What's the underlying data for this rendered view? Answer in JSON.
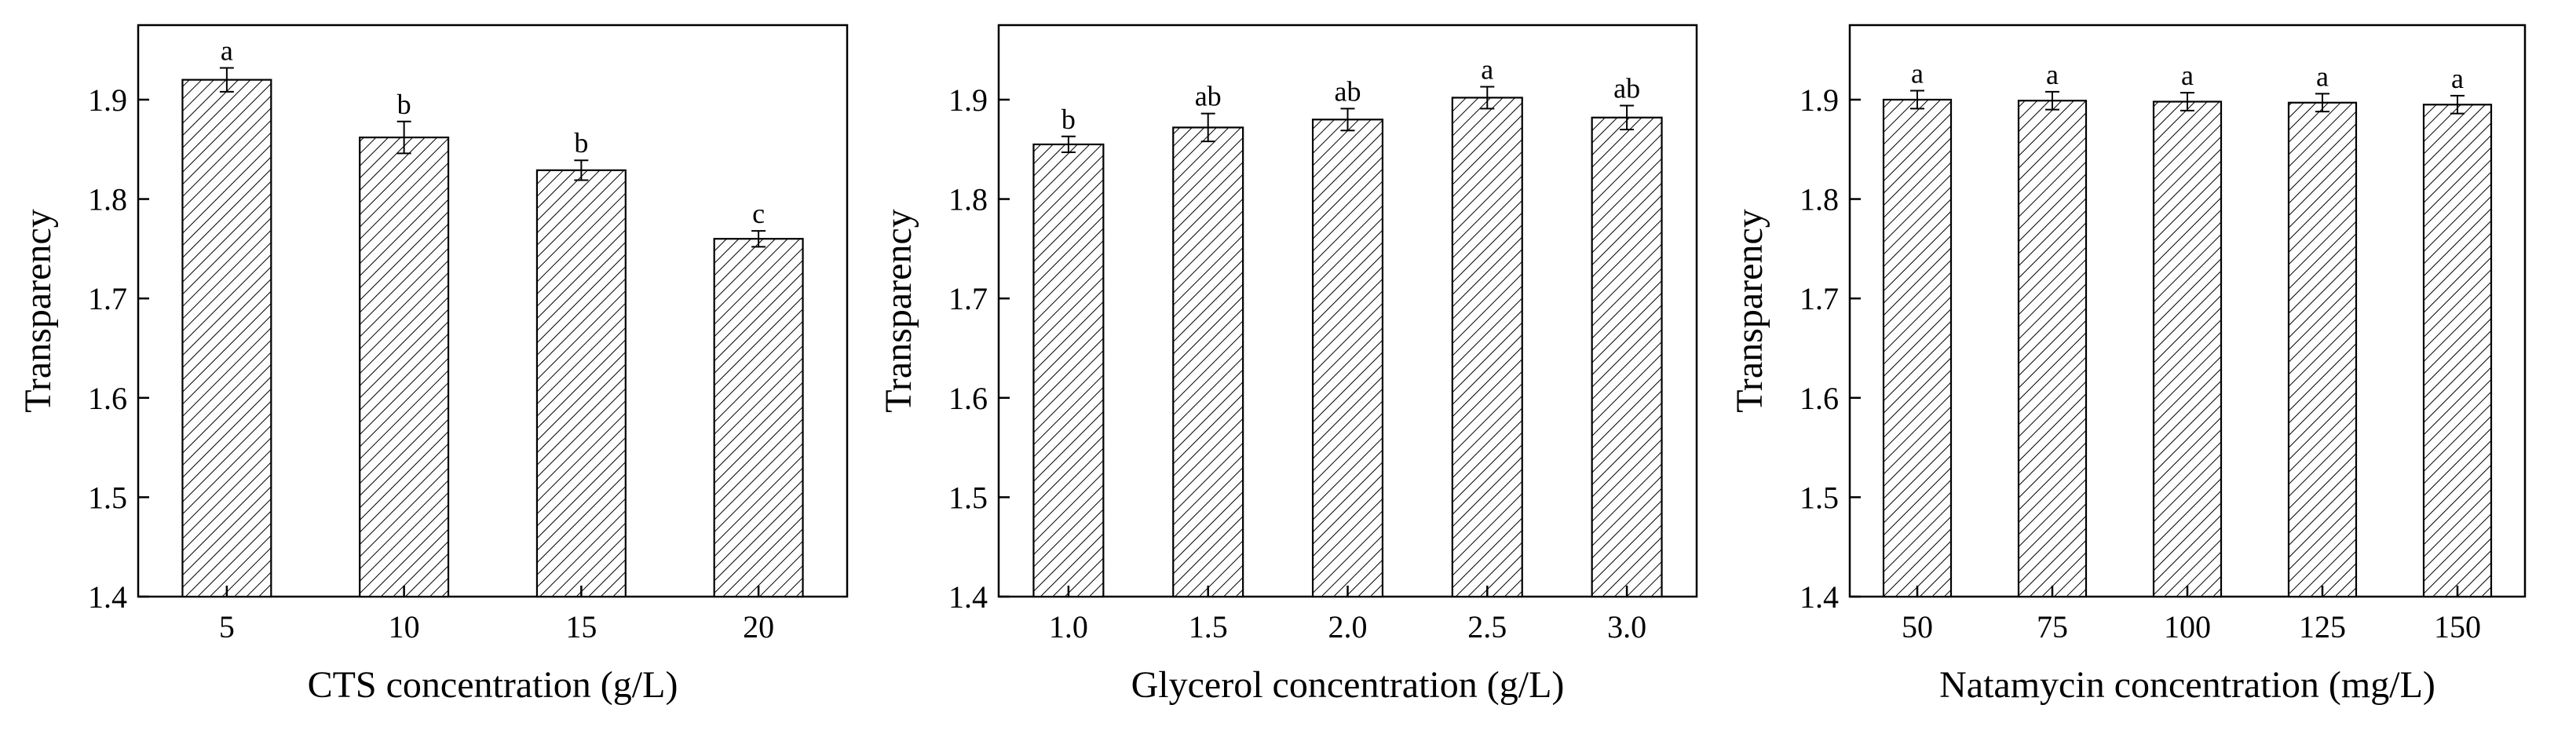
{
  "chart_data": [
    {
      "type": "bar",
      "title": "",
      "xlabel": "CTS concentration (g/L)",
      "ylabel": "Transparency",
      "ylim": [
        1.4,
        1.975
      ],
      "yticks": [
        "1.4",
        "1.5",
        "1.6",
        "1.7",
        "1.8",
        "1.9"
      ],
      "categories": [
        "5",
        "10",
        "15",
        "20"
      ],
      "values": [
        1.92,
        1.862,
        1.829,
        1.76
      ],
      "errors": [
        0.012,
        0.016,
        0.01,
        0.008
      ],
      "letters": [
        "a",
        "b",
        "b",
        "c"
      ]
    },
    {
      "type": "bar",
      "title": "",
      "xlabel": "Glycerol concentration (g/L)",
      "ylabel": "Transparency",
      "ylim": [
        1.4,
        1.975
      ],
      "yticks": [
        "1.4",
        "1.5",
        "1.6",
        "1.7",
        "1.8",
        "1.9"
      ],
      "categories": [
        "1.0",
        "1.5",
        "2.0",
        "2.5",
        "3.0"
      ],
      "values": [
        1.855,
        1.872,
        1.88,
        1.902,
        1.882
      ],
      "errors": [
        0.008,
        0.014,
        0.011,
        0.011,
        0.012
      ],
      "letters": [
        "b",
        "ab",
        "ab",
        "a",
        "ab"
      ]
    },
    {
      "type": "bar",
      "title": "",
      "xlabel": "Natamycin concentration (mg/L)",
      "ylabel": "Transparency",
      "ylim": [
        1.4,
        1.975
      ],
      "yticks": [
        "1.4",
        "1.5",
        "1.6",
        "1.7",
        "1.8",
        "1.9"
      ],
      "categories": [
        "50",
        "75",
        "100",
        "125",
        "150"
      ],
      "values": [
        1.9,
        1.899,
        1.898,
        1.897,
        1.895
      ],
      "errors": [
        0.009,
        0.009,
        0.009,
        0.009,
        0.009
      ],
      "letters": [
        "a",
        "a",
        "a",
        "a",
        "a"
      ]
    }
  ]
}
